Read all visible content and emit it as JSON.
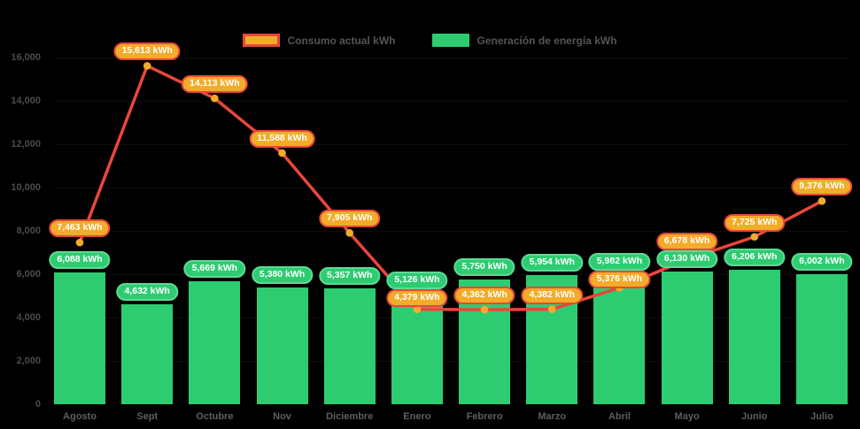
{
  "page": {
    "background": "#000000"
  },
  "colors": {
    "background": "#000000",
    "bar_green": "#2ECC71",
    "bar_pill_border": "#5CDA96",
    "line_red": "#E8473B",
    "amber": "#F2AC29",
    "axis_text": "#4B4B4B",
    "month_text": "#5F5F5F",
    "legend_text": "#555555",
    "label_text": "#FFFFFF"
  },
  "legend": {
    "items": [
      {
        "label": "Consumo actual kWh"
      },
      {
        "label": "Generación de energía kWh"
      }
    ]
  },
  "chart_data": {
    "type": "bar",
    "title": "",
    "xlabel": "",
    "ylabel": "",
    "categories": [
      "Agosto",
      "Sept",
      "Octubre",
      "Nov",
      "Diciembre",
      "Enero",
      "Febrero",
      "Marzo",
      "Abril",
      "Mayo",
      "Junio",
      "Julio"
    ],
    "series": [
      {
        "name": "Consumo actual kWh",
        "type": "line",
        "color": "#E8473B",
        "marker_color": "#F2AC29",
        "values": [
          7463,
          15613,
          14113,
          11588,
          7905,
          4379,
          4362,
          4382,
          5376,
          6678,
          7725,
          9376
        ],
        "labels": [
          "7,463 kWh",
          "15,613 kWh",
          "14,113 kWh",
          "11,588 kWh",
          "7,905 kWh",
          "4,379 kWh",
          "4,362 kWh",
          "4,382 kWh",
          "5,376 kWh",
          "6,678 kWh",
          "7,725 kWh",
          "9,376 kWh"
        ]
      },
      {
        "name": "Generación de energía kWh",
        "type": "bar",
        "color": "#2ECC71",
        "values": [
          6088,
          4632,
          5669,
          5380,
          5357,
          5126,
          5750,
          5954,
          5982,
          6130,
          6206,
          6002
        ],
        "labels": [
          "6,088 kWh",
          "4,632 kWh",
          "5,669 kWh",
          "5,380 kWh",
          "5,357 kWh",
          "5,126 kWh",
          "5,750 kWh",
          "5,954 kWh",
          "5,982 kWh",
          "6,130 kWh",
          "6,206 kWh",
          "6,002 kWh"
        ]
      }
    ],
    "ylim": [
      0,
      16000
    ],
    "yticks": {
      "values": [
        0,
        2000,
        4000,
        6000,
        8000,
        10000,
        12000,
        14000,
        16000
      ],
      "labels": [
        "0",
        "2,000",
        "4,000",
        "6,000",
        "8,000",
        "10,000",
        "12,000",
        "14,000",
        "16,000"
      ]
    },
    "grid": false,
    "legend_position": "top-center"
  }
}
